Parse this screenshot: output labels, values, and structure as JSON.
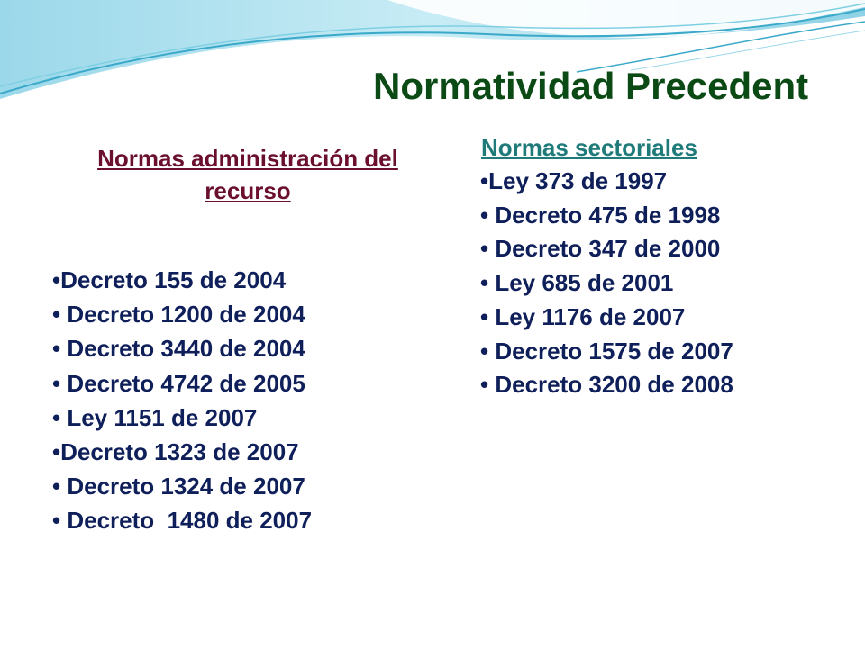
{
  "slide": {
    "title": "Normatividad Precedent",
    "left": {
      "heading": "Normas administración del recurso",
      "items": [
        "•Decreto 155 de 2004",
        "• Decreto 1200 de 2004",
        "• Decreto 3440 de 2004",
        "• Decreto 4742 de 2005",
        "• Ley 1151 de 2007",
        "•Decreto 1323 de 2007",
        "• Decreto 1324 de 2007",
        "• Decreto  1480 de 2007"
      ]
    },
    "right": {
      "heading": "Normas sectoriales",
      "items": [
        "•Ley 373 de 1997",
        "• Decreto 475 de 1998",
        "• Decreto 347 de 2000",
        "• Ley 685 de 2001",
        "• Ley 1176 de 2007",
        "• Decreto 1575 de 2007",
        "• Decreto 3200 de 2008"
      ]
    }
  },
  "colors": {
    "title": "#0b4a14",
    "left_heading": "#6b0f2e",
    "right_heading": "#1f7a7a",
    "list_text": "#0f1f5a",
    "banner_light": "#bfe7f2",
    "banner_mid": "#7fcfe3",
    "banner_dark": "#3aa9c9"
  }
}
